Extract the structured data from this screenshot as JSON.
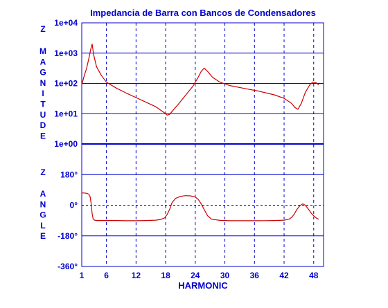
{
  "colors": {
    "frame": "#0000cc",
    "grid": "#0000cc",
    "text": "#0000cc",
    "curve": "#cc0000",
    "background": "#ffffff"
  },
  "chart_data": {
    "type": "line",
    "title": "Impedancia de Barra con Bancos de Condensadores",
    "xlabel": "HARMONIC",
    "x_range": [
      1,
      50
    ],
    "x_ticks": [
      {
        "value": 1,
        "label": "1"
      },
      {
        "value": 6,
        "label": "6"
      },
      {
        "value": 12,
        "label": "12"
      },
      {
        "value": 18,
        "label": "18"
      },
      {
        "value": 24,
        "label": "24"
      },
      {
        "value": 30,
        "label": "30"
      },
      {
        "value": 36,
        "label": "36"
      },
      {
        "value": 42,
        "label": "42"
      },
      {
        "value": 48,
        "label": "48"
      }
    ],
    "vertical_gridlines": [
      6,
      12,
      18,
      24,
      30,
      36,
      42,
      48
    ],
    "vertical_grid_style": "dashed",
    "horizontal_grid": true,
    "panels": [
      {
        "id": "magnitude",
        "ylabel_letters": [
          "Z",
          "M",
          "A",
          "G",
          "N",
          "I",
          "T",
          "U",
          "D",
          "E"
        ],
        "y_scale": "log",
        "y_range": [
          1,
          10000
        ],
        "y_ticks": [
          {
            "value": 1,
            "label": "1e+00"
          },
          {
            "value": 10,
            "label": "1e+01"
          },
          {
            "value": 100,
            "label": "1e+02"
          },
          {
            "value": 1000,
            "label": "1e+03"
          },
          {
            "value": 10000,
            "label": "1e+04"
          }
        ],
        "series": [
          {
            "x": [
              1,
              1.5,
              2,
              2.5,
              2.8,
              3.1,
              3.4,
              4,
              5,
              6,
              8,
              10,
              12,
              14,
              16,
              17,
              17.8,
              18.3,
              18.8,
              19.5,
              20.5,
              22,
              23.5,
              24.5,
              25.2,
              25.8,
              26.5,
              27.5,
              29,
              31,
              34,
              37,
              40,
              42,
              43.5,
              44.2,
              44.8,
              45.5,
              46.3,
              47.2,
              47.8,
              48.5,
              49
            ],
            "y": [
              90,
              180,
              320,
              750,
              1300,
              2000,
              900,
              350,
              180,
              110,
              70,
              48,
              34,
              24,
              17,
              13,
              10.5,
              9,
              9.5,
              13,
              20,
              40,
              80,
              150,
              250,
              320,
              250,
              160,
              110,
              85,
              68,
              55,
              42,
              32,
              22,
              16,
              14,
              22,
              50,
              90,
              110,
              105,
              90
            ]
          }
        ]
      },
      {
        "id": "angle",
        "ylabel_letters": [
          "Z",
          "A",
          "N",
          "G",
          "L",
          "E"
        ],
        "y_scale": "linear",
        "y_range": [
          -360,
          360
        ],
        "y_ticks": [
          {
            "value": 180,
            "label": "180°"
          },
          {
            "value": 0,
            "label": "0°"
          },
          {
            "value": -180,
            "label": "-180°"
          },
          {
            "value": -360,
            "label": "-360°"
          }
        ],
        "zero_line_style": "dashed",
        "series": [
          {
            "x": [
              1,
              1.5,
              2,
              2.4,
              2.7,
              2.9,
              3.1,
              3.3,
              3.6,
              4,
              5,
              6,
              8,
              10,
              12,
              14,
              16,
              17,
              17.8,
              18.3,
              18.8,
              19.3,
              20,
              21,
              22,
              23,
              24,
              24.6,
              25.2,
              25.8,
              26.5,
              27.3,
              29,
              31,
              34,
              37,
              40,
              42,
              43,
              43.6,
              44.1,
              44.6,
              45.2,
              45.8,
              46.3,
              46.9,
              47.6,
              48.2,
              48.7,
              49
            ],
            "y": [
              72,
              72,
              70,
              65,
              50,
              10,
              -50,
              -80,
              -88,
              -90,
              -90,
              -90,
              -90,
              -91,
              -91,
              -90,
              -88,
              -84,
              -74,
              -55,
              -25,
              15,
              40,
              52,
              56,
              55,
              48,
              34,
              8,
              -25,
              -62,
              -82,
              -89,
              -91,
              -91,
              -91,
              -90,
              -88,
              -82,
              -70,
              -50,
              -25,
              -3,
              8,
              0,
              -22,
              -50,
              -68,
              -78,
              -82
            ]
          }
        ]
      }
    ]
  }
}
